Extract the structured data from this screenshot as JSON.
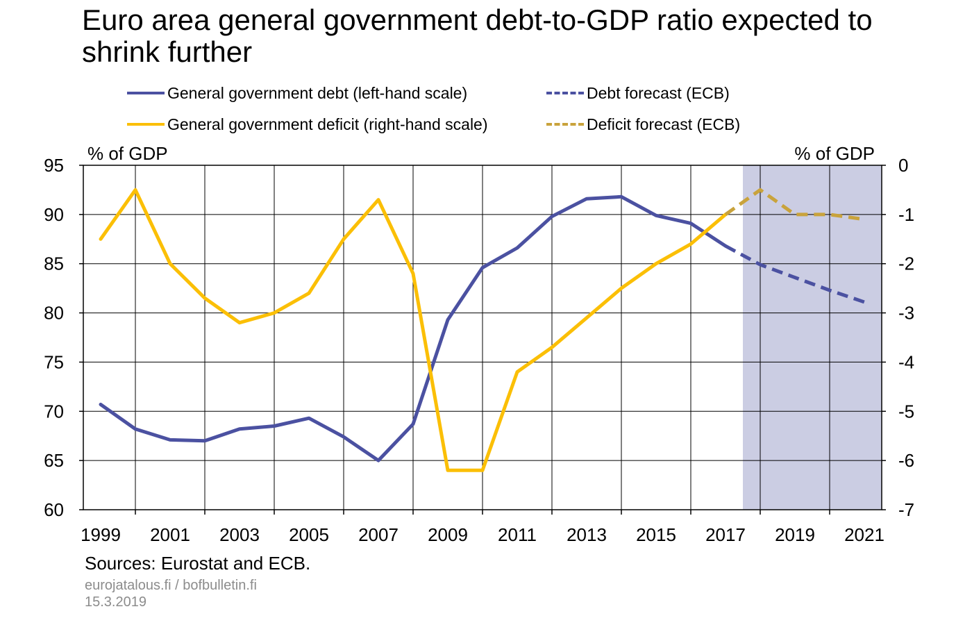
{
  "title": "Euro area general government debt-to-GDP ratio expected to shrink further",
  "footer": {
    "sources": "Sources: Eurostat and ECB.",
    "site": "eurojatalous.fi / bofbulletin.fi",
    "date": "15.3.2019"
  },
  "colors": {
    "debt": "#4b51a1",
    "deficit": "#fbbf06",
    "deficit_forecast": "#c9a33c",
    "forecast_shade": "#cbcde3",
    "grid": "#000000"
  },
  "legend": [
    {
      "label": "General government debt (left-hand scale)",
      "style": "solid",
      "color_key": "debt"
    },
    {
      "label": "Debt forecast (ECB)",
      "style": "dashed",
      "color_key": "debt"
    },
    {
      "label": "General government deficit (right-hand scale)",
      "style": "solid",
      "color_key": "deficit"
    },
    {
      "label": "Deficit forecast (ECB)",
      "style": "dashed",
      "color_key": "deficit_forecast"
    }
  ],
  "chart_data": {
    "type": "line",
    "y_left": {
      "label": "% of GDP",
      "range": [
        60,
        95
      ],
      "ticks": [
        95,
        90,
        85,
        80,
        75,
        70,
        65,
        60
      ]
    },
    "y_right": {
      "label": "% of GDP",
      "range": [
        -7,
        0
      ],
      "ticks": [
        0,
        -1,
        -2,
        -3,
        -4,
        -5,
        -6,
        -7
      ]
    },
    "x_ticks": [
      "1999",
      "2001",
      "2003",
      "2005",
      "2007",
      "2009",
      "2011",
      "2013",
      "2015",
      "2017",
      "2019",
      "2021"
    ],
    "forecast_shading": {
      "from": 2017.5,
      "to": 2022
    },
    "grid": true,
    "series": [
      {
        "name": "General government debt (left-hand scale)",
        "axis": "left",
        "style": "solid",
        "color_key": "debt",
        "x": [
          1999,
          2000,
          2001,
          2002,
          2003,
          2004,
          2005,
          2006,
          2007,
          2008,
          2009,
          2010,
          2011,
          2012,
          2013,
          2014,
          2015,
          2016,
          2017
        ],
        "y": [
          70.7,
          68.2,
          67.1,
          67.0,
          68.2,
          68.5,
          69.3,
          67.4,
          65.0,
          68.7,
          79.3,
          84.6,
          86.6,
          89.8,
          91.6,
          91.8,
          89.9,
          89.1,
          86.8
        ]
      },
      {
        "name": "Debt forecast (ECB)",
        "axis": "left",
        "style": "dashed",
        "color_key": "debt",
        "x": [
          2017,
          2018,
          2019,
          2020,
          2021
        ],
        "y": [
          86.8,
          84.9,
          83.6,
          82.3,
          81.1
        ]
      },
      {
        "name": "General government deficit (right-hand scale)",
        "axis": "right",
        "style": "solid",
        "color_key": "deficit",
        "x": [
          1999,
          2000,
          2001,
          2002,
          2003,
          2004,
          2005,
          2006,
          2007,
          2008,
          2009,
          2010,
          2011,
          2012,
          2013,
          2014,
          2015,
          2016,
          2017
        ],
        "y": [
          -1.5,
          -0.5,
          -2.0,
          -2.7,
          -3.2,
          -3.0,
          -2.6,
          -1.5,
          -0.7,
          -2.2,
          -6.2,
          -6.2,
          -4.2,
          -3.7,
          -3.1,
          -2.5,
          -2.0,
          -1.6,
          -1.0
        ]
      },
      {
        "name": "Deficit forecast (ECB)",
        "axis": "right",
        "style": "dashed",
        "color_key": "deficit_forecast",
        "x": [
          2017,
          2018,
          2019,
          2020,
          2021
        ],
        "y": [
          -1.0,
          -0.5,
          -1.0,
          -1.0,
          -1.1
        ]
      }
    ]
  }
}
